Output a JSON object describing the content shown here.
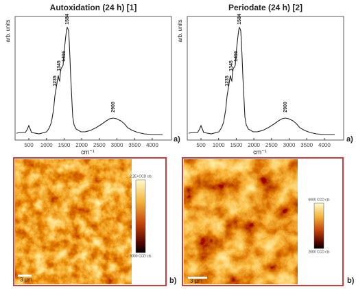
{
  "panels": [
    {
      "title": "Autoxidation (24 h) [1]",
      "y_label": "arb. units",
      "x_label": "cm⁻¹",
      "xticks": [
        500,
        1000,
        1500,
        2000,
        2500,
        3000,
        3500,
        4000
      ],
      "peaks": [
        "1235",
        "1345",
        "1416",
        "1584",
        "2900"
      ],
      "spectrum_label": "a)",
      "colorbar_max": "2.2E+CCD cts",
      "colorbar_min": "6000 CCD cts",
      "scale_bar": "3 µm",
      "map_label": "b)"
    },
    {
      "title": "Periodate (24 h) [2]",
      "y_label": "arb. units",
      "x_label": "cm⁻¹",
      "xticks": [
        500,
        1000,
        1500,
        2000,
        2500,
        3000,
        3500,
        4000
      ],
      "peaks": [
        "1235",
        "1345",
        "1416",
        "1584",
        "2900"
      ],
      "spectrum_label": "a)",
      "colorbar_max": "6000 CCD cts",
      "colorbar_min": "2000 CCD cts",
      "scale_bar": "3 µm",
      "map_label": "b)"
    }
  ]
}
